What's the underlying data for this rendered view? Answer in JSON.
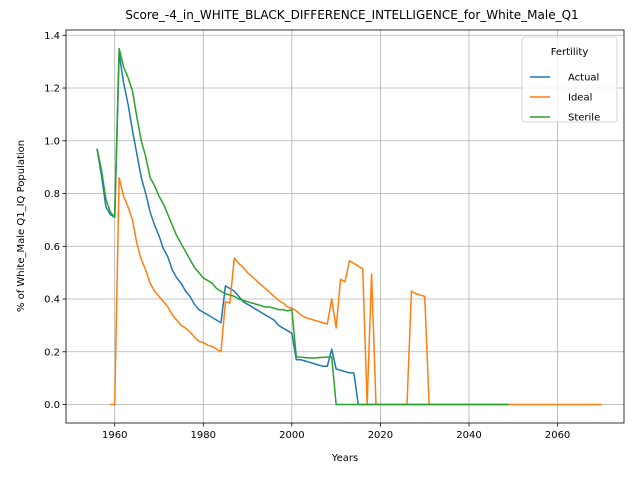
{
  "chart_data": {
    "type": "line",
    "title": "Score_-4_in_WHITE_BLACK_DIFFERENCE_INTELLIGENCE_for_White_Male_Q1",
    "xlabel": "Years",
    "ylabel": "% of White_Male Q1_IQ Population",
    "xlim": [
      1949,
      2075
    ],
    "ylim": [
      -0.07,
      1.42
    ],
    "xticks": [
      1960,
      1980,
      2000,
      2020,
      2040,
      2060
    ],
    "yticks": [
      0.0,
      0.2,
      0.4,
      0.6,
      0.8,
      1.0,
      1.2,
      1.4
    ],
    "ytick_labels": [
      "0.0",
      "0.2",
      "0.4",
      "0.6",
      "0.8",
      "1.0",
      "1.2",
      "1.4"
    ],
    "grid": true,
    "legend": {
      "title": "Fertility",
      "placement": "top-right"
    },
    "series": [
      {
        "name": "Actual",
        "color": "#1f77b4",
        "points": [
          [
            1956,
            0.97
          ],
          [
            1957,
            0.87
          ],
          [
            1958,
            0.75
          ],
          [
            1959,
            0.72
          ],
          [
            1960,
            0.71
          ],
          [
            1961,
            1.33
          ],
          [
            1962,
            1.22
          ],
          [
            1963,
            1.14
          ],
          [
            1964,
            1.04
          ],
          [
            1965,
            0.95
          ],
          [
            1966,
            0.86
          ],
          [
            1967,
            0.8
          ],
          [
            1968,
            0.73
          ],
          [
            1969,
            0.68
          ],
          [
            1970,
            0.64
          ],
          [
            1971,
            0.59
          ],
          [
            1972,
            0.56
          ],
          [
            1973,
            0.51
          ],
          [
            1974,
            0.48
          ],
          [
            1975,
            0.46
          ],
          [
            1976,
            0.43
          ],
          [
            1977,
            0.41
          ],
          [
            1978,
            0.38
          ],
          [
            1979,
            0.36
          ],
          [
            1980,
            0.35
          ],
          [
            1981,
            0.34
          ],
          [
            1982,
            0.33
          ],
          [
            1983,
            0.32
          ],
          [
            1984,
            0.31
          ],
          [
            1985,
            0.45
          ],
          [
            1986,
            0.44
          ],
          [
            1987,
            0.43
          ],
          [
            1988,
            0.41
          ],
          [
            1989,
            0.39
          ],
          [
            1990,
            0.38
          ],
          [
            1991,
            0.37
          ],
          [
            1992,
            0.36
          ],
          [
            1993,
            0.35
          ],
          [
            1994,
            0.34
          ],
          [
            1995,
            0.33
          ],
          [
            1996,
            0.32
          ],
          [
            1997,
            0.3
          ],
          [
            1998,
            0.29
          ],
          [
            1999,
            0.28
          ],
          [
            2000,
            0.27
          ],
          [
            2001,
            0.17
          ],
          [
            2002,
            0.17
          ],
          [
            2003,
            0.165
          ],
          [
            2004,
            0.16
          ],
          [
            2005,
            0.155
          ],
          [
            2006,
            0.15
          ],
          [
            2007,
            0.145
          ],
          [
            2008,
            0.145
          ],
          [
            2009,
            0.21
          ],
          [
            2010,
            0.135
          ],
          [
            2011,
            0.13
          ],
          [
            2012,
            0.125
          ],
          [
            2013,
            0.12
          ],
          [
            2014,
            0.12
          ],
          [
            2015,
            0.0
          ],
          [
            2016,
            0.0
          ],
          [
            2020,
            0.0
          ],
          [
            2030,
            0.0
          ],
          [
            2040,
            0.0
          ],
          [
            2049,
            0.0
          ]
        ]
      },
      {
        "name": "Ideal",
        "color": "#ff7f0e",
        "points": [
          [
            1959,
            0.0
          ],
          [
            1960,
            0.0
          ],
          [
            1961,
            0.86
          ],
          [
            1962,
            0.79
          ],
          [
            1963,
            0.75
          ],
          [
            1964,
            0.7
          ],
          [
            1965,
            0.61
          ],
          [
            1966,
            0.55
          ],
          [
            1967,
            0.51
          ],
          [
            1968,
            0.46
          ],
          [
            1969,
            0.43
          ],
          [
            1970,
            0.41
          ],
          [
            1971,
            0.39
          ],
          [
            1972,
            0.37
          ],
          [
            1973,
            0.34
          ],
          [
            1974,
            0.32
          ],
          [
            1975,
            0.3
          ],
          [
            1976,
            0.29
          ],
          [
            1977,
            0.275
          ],
          [
            1978,
            0.255
          ],
          [
            1979,
            0.24
          ],
          [
            1980,
            0.235
          ],
          [
            1981,
            0.225
          ],
          [
            1982,
            0.22
          ],
          [
            1983,
            0.21
          ],
          [
            1984,
            0.2
          ],
          [
            1985,
            0.39
          ],
          [
            1986,
            0.385
          ],
          [
            1987,
            0.555
          ],
          [
            1988,
            0.535
          ],
          [
            1989,
            0.52
          ],
          [
            1990,
            0.5
          ],
          [
            1991,
            0.485
          ],
          [
            1992,
            0.47
          ],
          [
            1993,
            0.455
          ],
          [
            1994,
            0.44
          ],
          [
            1995,
            0.425
          ],
          [
            1996,
            0.41
          ],
          [
            1997,
            0.395
          ],
          [
            1998,
            0.385
          ],
          [
            1999,
            0.37
          ],
          [
            2000,
            0.365
          ],
          [
            2001,
            0.355
          ],
          [
            2002,
            0.34
          ],
          [
            2003,
            0.33
          ],
          [
            2004,
            0.325
          ],
          [
            2005,
            0.32
          ],
          [
            2006,
            0.315
          ],
          [
            2007,
            0.31
          ],
          [
            2008,
            0.305
          ],
          [
            2009,
            0.4
          ],
          [
            2010,
            0.29
          ],
          [
            2011,
            0.475
          ],
          [
            2012,
            0.465
          ],
          [
            2013,
            0.545
          ],
          [
            2014,
            0.535
          ],
          [
            2015,
            0.525
          ],
          [
            2016,
            0.515
          ],
          [
            2017,
            0.0
          ],
          [
            2018,
            0.495
          ],
          [
            2019,
            0.0
          ],
          [
            2020,
            0.0
          ],
          [
            2026,
            0.0
          ],
          [
            2027,
            0.43
          ],
          [
            2028,
            0.42
          ],
          [
            2029,
            0.415
          ],
          [
            2030,
            0.41
          ],
          [
            2031,
            0.0
          ],
          [
            2035,
            0.0
          ],
          [
            2040,
            0.0
          ],
          [
            2050,
            0.0
          ],
          [
            2060,
            0.0
          ],
          [
            2070,
            0.0
          ]
        ]
      },
      {
        "name": "Sterile",
        "color": "#2ca02c",
        "points": [
          [
            1956,
            0.97
          ],
          [
            1957,
            0.89
          ],
          [
            1958,
            0.78
          ],
          [
            1959,
            0.73
          ],
          [
            1960,
            0.71
          ],
          [
            1961,
            1.35
          ],
          [
            1962,
            1.28
          ],
          [
            1963,
            1.24
          ],
          [
            1964,
            1.19
          ],
          [
            1965,
            1.09
          ],
          [
            1966,
            1.0
          ],
          [
            1967,
            0.94
          ],
          [
            1968,
            0.86
          ],
          [
            1969,
            0.83
          ],
          [
            1970,
            0.79
          ],
          [
            1971,
            0.76
          ],
          [
            1972,
            0.72
          ],
          [
            1973,
            0.68
          ],
          [
            1974,
            0.64
          ],
          [
            1975,
            0.61
          ],
          [
            1976,
            0.58
          ],
          [
            1977,
            0.55
          ],
          [
            1978,
            0.52
          ],
          [
            1979,
            0.5
          ],
          [
            1980,
            0.48
          ],
          [
            1981,
            0.47
          ],
          [
            1982,
            0.46
          ],
          [
            1983,
            0.44
          ],
          [
            1984,
            0.43
          ],
          [
            1985,
            0.42
          ],
          [
            1986,
            0.415
          ],
          [
            1987,
            0.41
          ],
          [
            1988,
            0.4
          ],
          [
            1989,
            0.395
          ],
          [
            1990,
            0.39
          ],
          [
            1991,
            0.385
          ],
          [
            1992,
            0.38
          ],
          [
            1993,
            0.375
          ],
          [
            1994,
            0.37
          ],
          [
            1995,
            0.37
          ],
          [
            1996,
            0.365
          ],
          [
            1997,
            0.36
          ],
          [
            1998,
            0.36
          ],
          [
            1999,
            0.355
          ],
          [
            2000,
            0.36
          ],
          [
            2001,
            0.18
          ],
          [
            2002,
            0.18
          ],
          [
            2003,
            0.178
          ],
          [
            2004,
            0.177
          ],
          [
            2005,
            0.176
          ],
          [
            2006,
            0.178
          ],
          [
            2007,
            0.179
          ],
          [
            2008,
            0.18
          ],
          [
            2009,
            0.18
          ],
          [
            2010,
            0.0
          ],
          [
            2015,
            0.0
          ],
          [
            2020,
            0.0
          ],
          [
            2030,
            0.0
          ],
          [
            2040,
            0.0
          ],
          [
            2049,
            0.0
          ]
        ]
      }
    ]
  }
}
